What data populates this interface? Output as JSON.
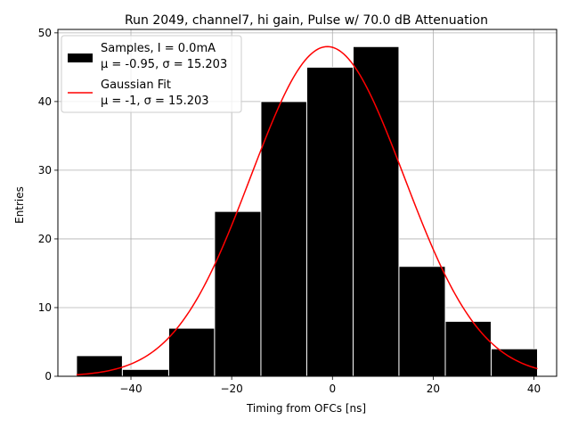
{
  "chart_data": {
    "type": "bar",
    "title": "Run 2049, channel7, hi gain, Pulse w/ 70.0 dB Attenuation",
    "xlabel": "Timing from OFCs [ns]",
    "ylabel": "Entries",
    "xlim": [
      -54.5,
      44.5
    ],
    "ylim": [
      0,
      50.5
    ],
    "x_ticks": [
      -40,
      -20,
      0,
      20,
      40
    ],
    "y_ticks": [
      0,
      10,
      20,
      30,
      40,
      50
    ],
    "grid": true,
    "legend_position": "top-left",
    "histogram": {
      "name": "Samples, I = 0.0mA",
      "name_line2": "μ = -0.95, σ = 15.203",
      "color": "#000000",
      "edge_color": "#ffffff",
      "bin_edges": [
        -50.8,
        -41.7,
        -32.5,
        -23.4,
        -14.2,
        -5.1,
        4.1,
        13.2,
        22.4,
        31.5,
        40.7
      ],
      "counts": [
        3,
        1,
        7,
        24,
        40,
        45,
        48,
        16,
        8,
        4
      ]
    },
    "fit": {
      "name": "Gaussian Fit",
      "name_line2": "μ = -1, σ = 15.203",
      "color": "#ff0000",
      "mu": -1,
      "sigma": 15.203,
      "amplitude": 48,
      "x_range": [
        -50.8,
        40.7
      ]
    }
  }
}
